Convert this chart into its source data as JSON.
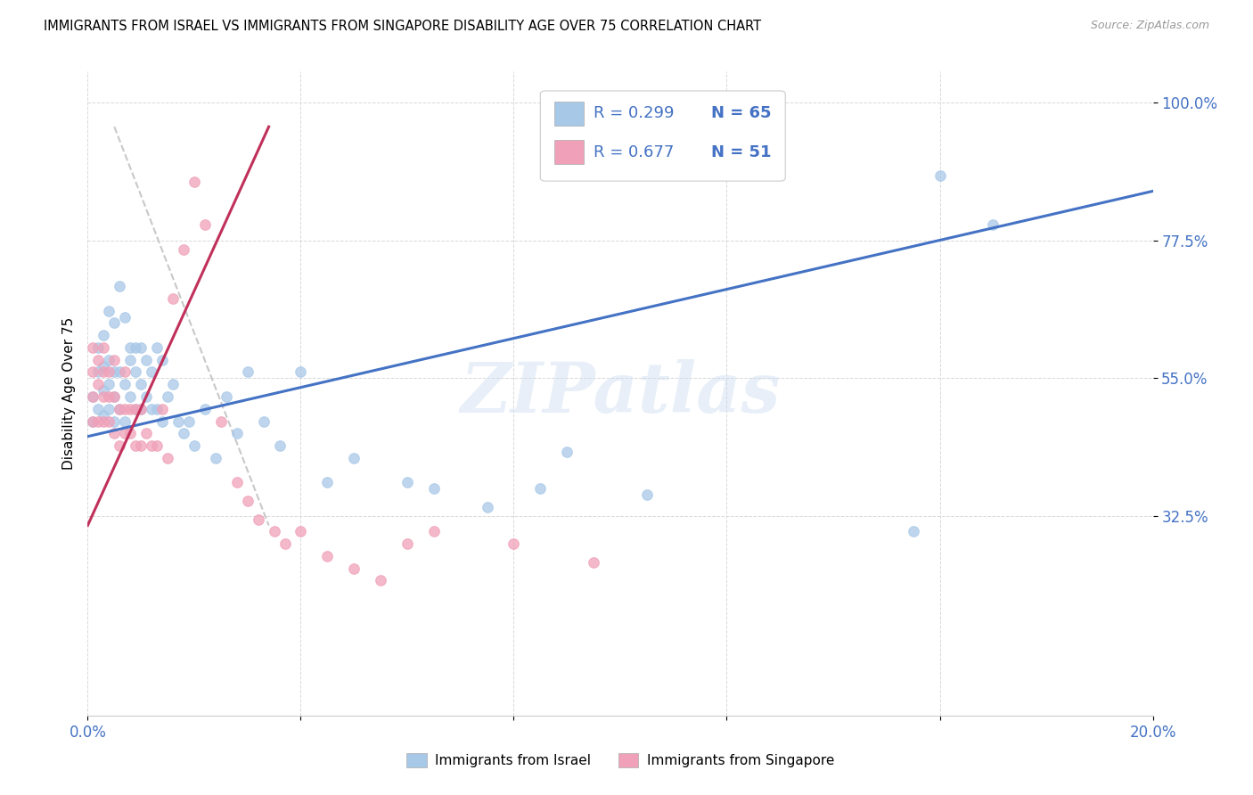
{
  "title": "IMMIGRANTS FROM ISRAEL VS IMMIGRANTS FROM SINGAPORE DISABILITY AGE OVER 75 CORRELATION CHART",
  "source": "Source: ZipAtlas.com",
  "ylabel": "Disability Age Over 75",
  "xlim": [
    0.0,
    0.2
  ],
  "ylim": [
    0.0,
    1.05
  ],
  "xtick_positions": [
    0.0,
    0.04,
    0.08,
    0.12,
    0.16,
    0.2
  ],
  "xticklabels": [
    "0.0%",
    "",
    "",
    "",
    "",
    "20.0%"
  ],
  "ytick_positions": [
    0.325,
    0.55,
    0.775,
    1.0
  ],
  "yticklabels": [
    "32.5%",
    "55.0%",
    "77.5%",
    "100.0%"
  ],
  "israel_color": "#a8c8e8",
  "singapore_color": "#f0a0b8",
  "israel_line_color": "#4472c4",
  "singapore_line_color": "#c0305a",
  "dashed_color": "#c8c8c8",
  "legend_r_israel": "R = 0.299",
  "legend_n_israel": "N = 65",
  "legend_r_singapore": "R = 0.677",
  "legend_n_singapore": "N = 51",
  "watermark": "ZIPatlas",
  "israel_trend": [
    0.0,
    0.2,
    0.455,
    0.855
  ],
  "singapore_trend": [
    0.0,
    0.034,
    0.31,
    0.96
  ],
  "dashed_trend": [
    0.005,
    0.034,
    0.96,
    0.31
  ],
  "israel_scatter_x": [
    0.001,
    0.001,
    0.002,
    0.002,
    0.002,
    0.003,
    0.003,
    0.003,
    0.003,
    0.004,
    0.004,
    0.004,
    0.004,
    0.005,
    0.005,
    0.005,
    0.005,
    0.006,
    0.006,
    0.006,
    0.007,
    0.007,
    0.007,
    0.008,
    0.008,
    0.008,
    0.009,
    0.009,
    0.009,
    0.01,
    0.01,
    0.01,
    0.011,
    0.011,
    0.012,
    0.012,
    0.013,
    0.013,
    0.014,
    0.014,
    0.015,
    0.016,
    0.017,
    0.018,
    0.019,
    0.02,
    0.022,
    0.024,
    0.026,
    0.028,
    0.03,
    0.033,
    0.036,
    0.04,
    0.045,
    0.05,
    0.06,
    0.065,
    0.075,
    0.085,
    0.09,
    0.105,
    0.155,
    0.16,
    0.17
  ],
  "israel_scatter_y": [
    0.48,
    0.52,
    0.5,
    0.56,
    0.6,
    0.49,
    0.53,
    0.57,
    0.62,
    0.5,
    0.54,
    0.58,
    0.66,
    0.48,
    0.52,
    0.56,
    0.64,
    0.5,
    0.56,
    0.7,
    0.48,
    0.54,
    0.65,
    0.52,
    0.58,
    0.6,
    0.5,
    0.56,
    0.6,
    0.5,
    0.54,
    0.6,
    0.52,
    0.58,
    0.5,
    0.56,
    0.5,
    0.6,
    0.48,
    0.58,
    0.52,
    0.54,
    0.48,
    0.46,
    0.48,
    0.44,
    0.5,
    0.42,
    0.52,
    0.46,
    0.56,
    0.48,
    0.44,
    0.56,
    0.38,
    0.42,
    0.38,
    0.37,
    0.34,
    0.37,
    0.43,
    0.36,
    0.3,
    0.88,
    0.8
  ],
  "singapore_scatter_x": [
    0.001,
    0.001,
    0.001,
    0.001,
    0.002,
    0.002,
    0.002,
    0.003,
    0.003,
    0.003,
    0.003,
    0.004,
    0.004,
    0.004,
    0.005,
    0.005,
    0.005,
    0.006,
    0.006,
    0.007,
    0.007,
    0.007,
    0.008,
    0.008,
    0.009,
    0.009,
    0.01,
    0.01,
    0.011,
    0.012,
    0.013,
    0.014,
    0.015,
    0.016,
    0.018,
    0.02,
    0.022,
    0.025,
    0.028,
    0.03,
    0.032,
    0.035,
    0.037,
    0.04,
    0.045,
    0.05,
    0.055,
    0.06,
    0.065,
    0.08,
    0.095
  ],
  "singapore_scatter_y": [
    0.48,
    0.52,
    0.56,
    0.6,
    0.48,
    0.54,
    0.58,
    0.48,
    0.52,
    0.56,
    0.6,
    0.48,
    0.52,
    0.56,
    0.46,
    0.52,
    0.58,
    0.44,
    0.5,
    0.46,
    0.5,
    0.56,
    0.46,
    0.5,
    0.44,
    0.5,
    0.44,
    0.5,
    0.46,
    0.44,
    0.44,
    0.5,
    0.42,
    0.68,
    0.76,
    0.87,
    0.8,
    0.48,
    0.38,
    0.35,
    0.32,
    0.3,
    0.28,
    0.3,
    0.26,
    0.24,
    0.22,
    0.28,
    0.3,
    0.28,
    0.25
  ]
}
